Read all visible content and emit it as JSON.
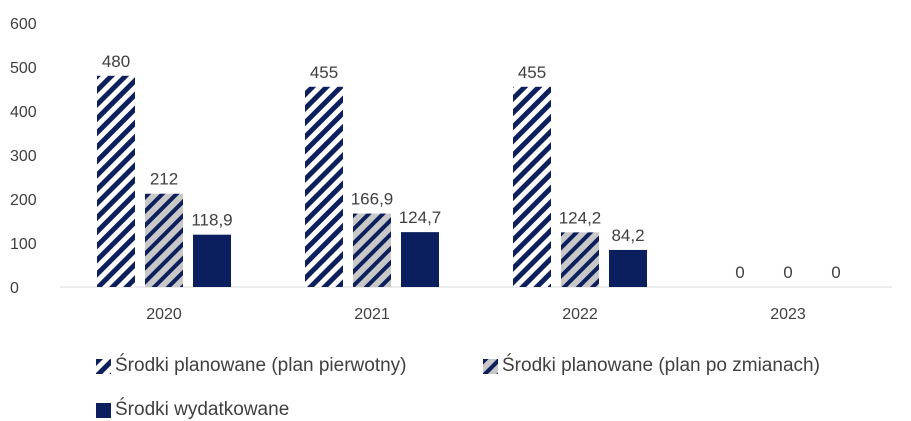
{
  "chart_data": {
    "type": "bar",
    "categories": [
      "2020",
      "2021",
      "2022",
      "2023"
    ],
    "series": [
      {
        "name": "Środki planowane (plan pierwotny)",
        "values": [
          480,
          455,
          455,
          0
        ],
        "labels": [
          "480",
          "455",
          "455",
          "0"
        ],
        "color": "#0d1f5c",
        "pattern": "diag-navy"
      },
      {
        "name": "Środki planowane (plan po zmianach)",
        "values": [
          212,
          166.9,
          124.2,
          0
        ],
        "labels": [
          "212",
          "166,9",
          "124,2",
          "0"
        ],
        "color": "#0d1f5c",
        "pattern": "diag-grey"
      },
      {
        "name": "Środki wydatkowane",
        "values": [
          118.9,
          124.7,
          84.2,
          0
        ],
        "labels": [
          "118,9",
          "124,7",
          "84,2",
          "0"
        ],
        "color": "#0b1f5e",
        "pattern": "solid"
      }
    ],
    "yticks": [
      "0",
      "100",
      "200",
      "300",
      "400",
      "500",
      "600"
    ],
    "ylim": [
      0,
      600
    ],
    "grid": false,
    "legend_position": "bottom"
  }
}
